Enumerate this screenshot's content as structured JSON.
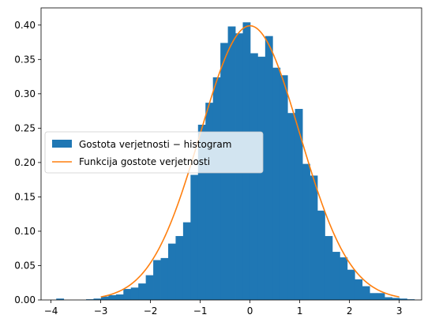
{
  "chart_data": {
    "type": "bar",
    "title": "",
    "xlabel": "",
    "ylabel": "",
    "xlim": [
      -4.2,
      3.45
    ],
    "ylim": [
      0,
      0.425
    ],
    "grid": false,
    "legend_position": "center-left",
    "x_ticks": [
      {
        "value": -4,
        "label": "−4"
      },
      {
        "value": -3,
        "label": "−3"
      },
      {
        "value": -2,
        "label": "−2"
      },
      {
        "value": -1,
        "label": "−1"
      },
      {
        "value": 0,
        "label": "0"
      },
      {
        "value": 1,
        "label": "1"
      },
      {
        "value": 2,
        "label": "2"
      },
      {
        "value": 3,
        "label": "3"
      }
    ],
    "y_ticks": [
      {
        "value": 0.0,
        "label": "0.00"
      },
      {
        "value": 0.05,
        "label": "0.05"
      },
      {
        "value": 0.1,
        "label": "0.10"
      },
      {
        "value": 0.15,
        "label": "0.15"
      },
      {
        "value": 0.2,
        "label": "0.20"
      },
      {
        "value": 0.25,
        "label": "0.25"
      },
      {
        "value": 0.3,
        "label": "0.30"
      },
      {
        "value": 0.35,
        "label": "0.35"
      },
      {
        "value": 0.4,
        "label": "0.40"
      }
    ],
    "series": [
      {
        "name": "Gostota verjetnosti − histogram",
        "kind": "histogram",
        "color": "#1f77b4",
        "bin_edges": [
          -3.895,
          -3.745,
          -3.595,
          -3.445,
          -3.295,
          -3.145,
          -2.995,
          -2.845,
          -2.695,
          -2.545,
          -2.395,
          -2.245,
          -2.095,
          -1.945,
          -1.795,
          -1.645,
          -1.495,
          -1.345,
          -1.195,
          -1.045,
          -0.895,
          -0.745,
          -0.595,
          -0.445,
          -0.295,
          -0.145,
          0.005,
          0.155,
          0.305,
          0.455,
          0.605,
          0.755,
          0.905,
          1.055,
          1.205,
          1.355,
          1.505,
          1.655,
          1.805,
          1.955,
          2.105,
          2.255,
          2.405,
          2.555,
          2.705,
          2.855,
          3.005,
          3.155,
          3.305
        ],
        "density": [
          0.002,
          0.0,
          0.0,
          0.0,
          0.001,
          0.002,
          0.005,
          0.007,
          0.008,
          0.016,
          0.018,
          0.024,
          0.036,
          0.058,
          0.061,
          0.082,
          0.093,
          0.113,
          0.182,
          0.255,
          0.287,
          0.324,
          0.374,
          0.398,
          0.388,
          0.404,
          0.359,
          0.354,
          0.384,
          0.338,
          0.327,
          0.272,
          0.278,
          0.198,
          0.181,
          0.13,
          0.093,
          0.07,
          0.062,
          0.044,
          0.03,
          0.02,
          0.01,
          0.01,
          0.004,
          0.003,
          0.002,
          0.001
        ]
      },
      {
        "name": "Funkcija gostote verjetnosti",
        "kind": "line",
        "color": "#ff7f0e",
        "x_range": [
          -3.0,
          3.0
        ],
        "mean": 0,
        "std": 1
      }
    ]
  }
}
